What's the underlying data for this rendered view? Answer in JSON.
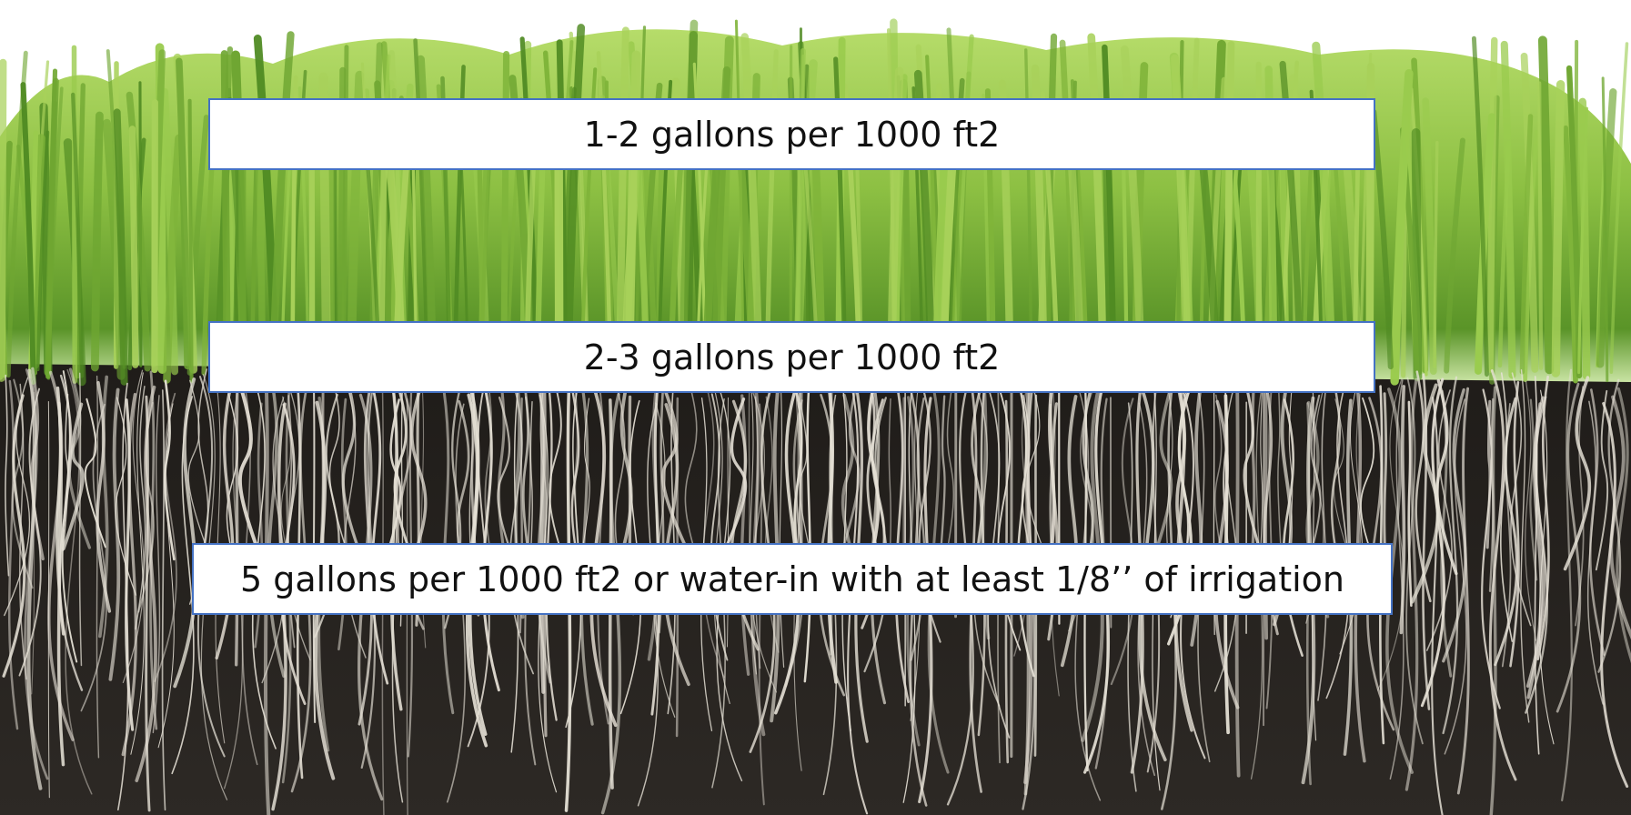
{
  "labels": {
    "shoot_zone": "1-2 gallons per 1000 ft2",
    "thatch_zone": "2-3 gallons per 1000 ft2",
    "root_zone": "5 gallons per 1000 ft2 or water-in with at least 1/8’’ of irrigation"
  },
  "colors": {
    "grass_light": "#a8d15a",
    "grass_mid": "#7fb43a",
    "grass_dark": "#4f8a22",
    "soil": "#2a2622",
    "roots": "#e6e1d6",
    "box_border": "#4472c4",
    "box_fill": "#ffffff",
    "text": "#111111"
  }
}
